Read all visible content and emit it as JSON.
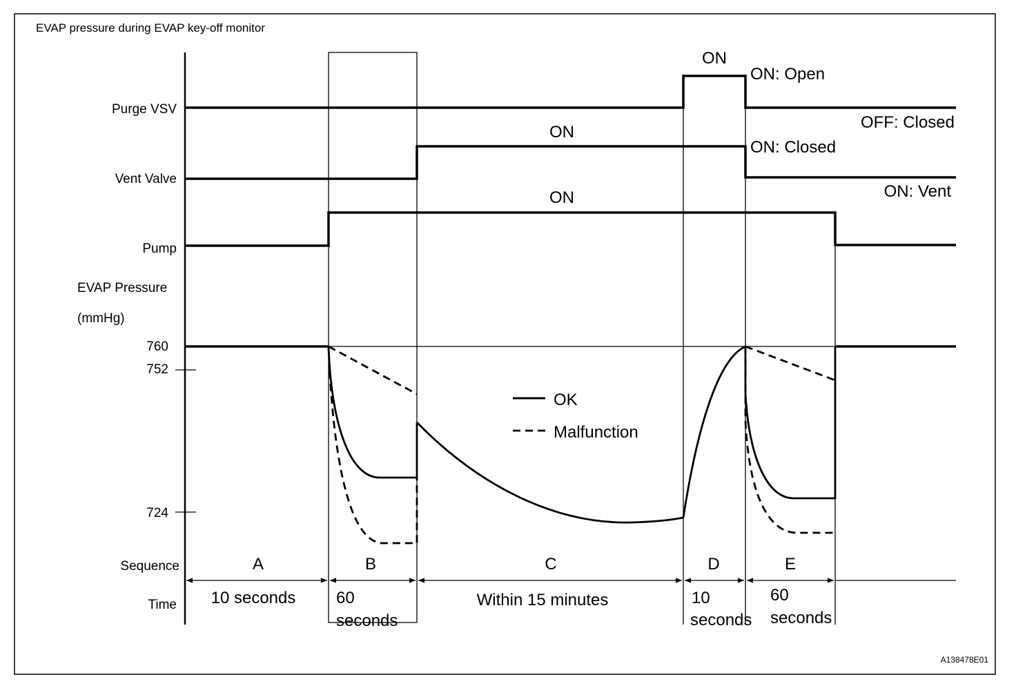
{
  "title": "EVAP pressure during EVAP key-off monitor",
  "figure_id": "A138478E01",
  "rows": {
    "purge_vsv": "Purge VSV",
    "vent_valve": "Vent Valve",
    "pump": "Pump",
    "evap_pressure": "EVAP Pressure",
    "unit": "(mmHg)",
    "sequence": "Sequence",
    "time": "Time"
  },
  "state_labels": {
    "purge_on": "ON",
    "purge_on_open": "ON: Open",
    "purge_off_closed": "OFF: Closed",
    "vent_on": "ON",
    "vent_on_closed": "ON: Closed",
    "vent_on_vent": "ON: Vent",
    "pump_on": "ON"
  },
  "pressure_ticks": [
    "760",
    "752",
    "724"
  ],
  "legend": {
    "ok": "OK",
    "malfunction": "Malfunction"
  },
  "sequences": [
    {
      "id": "A",
      "time": [
        "10 seconds"
      ]
    },
    {
      "id": "B",
      "time": [
        "60",
        "seconds"
      ]
    },
    {
      "id": "C",
      "time": [
        "Within 15 minutes"
      ]
    },
    {
      "id": "D",
      "time": [
        "10",
        "seconds"
      ]
    },
    {
      "id": "E",
      "time": [
        "60",
        "seconds"
      ]
    }
  ]
}
